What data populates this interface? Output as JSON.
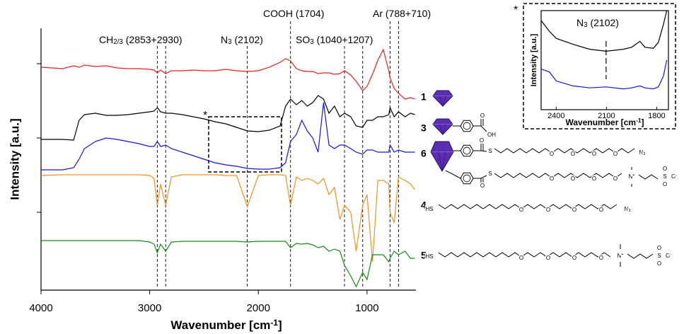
{
  "chart_data": [
    {
      "type": "line",
      "xlabel": {
        "text": "Wavenumber [cm",
        "sup": "-1",
        "end": "]"
      },
      "ylabel": "Intensity [a.u.]",
      "x": [
        4000,
        3800,
        3700,
        3650,
        3600,
        3500,
        3400,
        3300,
        3200,
        3100,
        3000,
        2960,
        2930,
        2900,
        2853,
        2800,
        2700,
        2600,
        2500,
        2400,
        2300,
        2200,
        2102,
        2000,
        1900,
        1800,
        1750,
        1704,
        1650,
        1600,
        1550,
        1500,
        1450,
        1400,
        1350,
        1300,
        1250,
        1207,
        1150,
        1100,
        1040,
        1000,
        950,
        900,
        850,
        800,
        788,
        750,
        710,
        650,
        600,
        560
      ],
      "xlim": [
        4000,
        550
      ],
      "xticks": [
        4000,
        3000,
        2000,
        1000
      ],
      "ylim": [
        0,
        370
      ],
      "yticks": [
        110,
        215,
        320
      ],
      "series": [
        {
          "name": "1",
          "color": "#e8201f",
          "values": [
            315,
            313,
            317,
            315,
            318,
            316,
            317,
            314,
            313,
            313,
            312,
            311,
            307,
            311,
            306,
            310,
            310,
            311,
            310,
            310,
            312,
            310,
            309,
            310,
            315,
            322,
            327,
            324,
            313,
            310,
            309,
            309,
            306,
            307,
            307,
            305,
            306,
            310,
            304,
            295,
            282,
            288,
            305,
            325,
            340,
            310,
            300,
            285,
            278,
            270,
            272,
            270
          ]
        },
        {
          "name": "3",
          "color": "#000000",
          "values": [
            213,
            213,
            212,
            240,
            248,
            250,
            247,
            247,
            248,
            250,
            252,
            253,
            258,
            252,
            250,
            250,
            248,
            245,
            242,
            238,
            235,
            230,
            225,
            224,
            226,
            232,
            260,
            270,
            262,
            268,
            260,
            265,
            275,
            270,
            250,
            260,
            245,
            250,
            245,
            232,
            230,
            240,
            240,
            245,
            245,
            248,
            258,
            245,
            252,
            245,
            250,
            248
          ]
        },
        {
          "name": "6",
          "color": "#1515e0",
          "values": [
            170,
            170,
            173,
            185,
            200,
            210,
            215,
            213,
            210,
            207,
            203,
            203,
            210,
            203,
            205,
            200,
            195,
            190,
            185,
            180,
            177,
            175,
            172,
            171,
            171,
            173,
            180,
            210,
            220,
            240,
            225,
            215,
            195,
            265,
            205,
            200,
            205,
            205,
            200,
            195,
            192,
            198,
            198,
            195,
            195,
            195,
            205,
            195,
            198,
            195,
            195,
            195
          ]
        },
        {
          "name": "4",
          "color": "#f5901e",
          "values": [
            162,
            163,
            163,
            163,
            163,
            163,
            163,
            163,
            163,
            163,
            162,
            158,
            120,
            150,
            120,
            160,
            163,
            163,
            163,
            163,
            162,
            162,
            118,
            162,
            163,
            163,
            162,
            120,
            160,
            155,
            158,
            155,
            150,
            158,
            135,
            145,
            100,
            120,
            110,
            55,
            120,
            135,
            40,
            155,
            155,
            150,
            110,
            95,
            160,
            155,
            150,
            142
          ]
        },
        {
          "name": "5",
          "color": "#1a8a1a",
          "values": [
            70,
            70,
            70,
            70,
            70,
            70,
            70,
            70,
            70,
            70,
            68,
            65,
            53,
            65,
            55,
            68,
            69,
            69,
            69,
            69,
            69,
            69,
            68,
            69,
            69,
            69,
            69,
            60,
            66,
            65,
            66,
            64,
            60,
            62,
            55,
            58,
            55,
            35,
            20,
            5,
            25,
            15,
            50,
            50,
            50,
            40,
            45,
            55,
            50,
            55,
            45,
            45
          ]
        }
      ],
      "annotations": [
        {
          "text": "CH",
          "sub": "2/3",
          "end": " (2853+2930)",
          "lines": [
            2930,
            2853
          ]
        },
        {
          "text": "N",
          "sub": "3",
          "end": " (2102)",
          "lines": [
            2102
          ]
        },
        {
          "text": "COOH (1704)",
          "lines": [
            1704
          ]
        },
        {
          "text": "SO",
          "sub": "3",
          "end": " (1040+1207)",
          "lines": [
            1207,
            1040
          ]
        },
        {
          "text": "Ar (788+710)",
          "lines": [
            788,
            710
          ]
        }
      ],
      "marker": "*"
    },
    {
      "type": "line",
      "title": {
        "text": "N",
        "sub": "3",
        "end": " (2102)"
      },
      "xlabel": {
        "text": "Wavenumber [cm",
        "sup": "-1",
        "end": "]"
      },
      "ylabel": "Intensity [a.u.]",
      "x": [
        2490,
        2440,
        2400,
        2300,
        2200,
        2102,
        2000,
        1950,
        1900,
        1870,
        1820,
        1790,
        1760,
        1740
      ],
      "xlim": [
        2490,
        1730
      ],
      "xticks": [
        2400,
        2100,
        1800
      ],
      "ylim": [
        0,
        100
      ],
      "series": [
        {
          "color": "#000000",
          "values": [
            90,
            79,
            72,
            66,
            61,
            59,
            61,
            63,
            69,
            63,
            62,
            68,
            86,
            100
          ]
        },
        {
          "color": "#1515e0",
          "values": [
            41,
            38,
            29,
            24,
            22,
            23,
            21,
            22,
            24,
            22,
            21,
            23,
            34,
            50
          ]
        }
      ],
      "annotations": [
        {
          "lines": [
            2102
          ]
        }
      ],
      "marker": "*"
    }
  ],
  "structures": [
    [
      "O",
      "OH"
    ],
    [
      "O",
      "S",
      "O",
      "O",
      "O",
      "O",
      {
        "text": "N",
        "sub": "3"
      },
      "O",
      "S",
      "O",
      "O",
      "O",
      "O",
      {
        "text": "N",
        "sup": "+"
      },
      "S",
      "O",
      "O",
      {
        "text": "O",
        "sup": "-"
      }
    ],
    [
      "HS",
      "O",
      "O",
      "O",
      "O",
      {
        "text": "N",
        "sub": "3"
      }
    ],
    [
      "HS",
      "O",
      "O",
      "O",
      "O",
      {
        "text": "N",
        "sup": "+"
      },
      "S",
      "O",
      "O",
      {
        "text": "O",
        "sup": "-"
      }
    ]
  ]
}
